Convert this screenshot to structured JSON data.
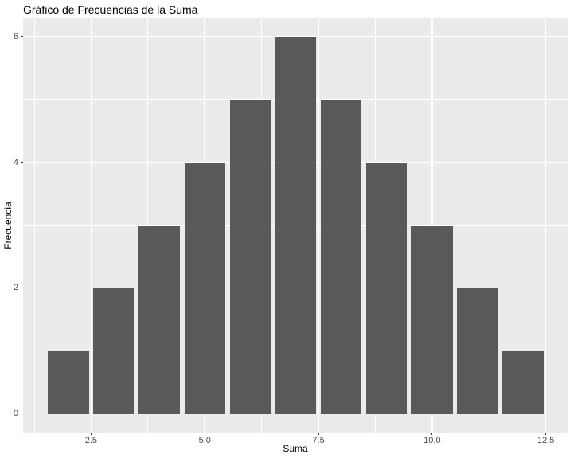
{
  "chart_data": {
    "type": "bar",
    "title": "Gráfico de Frecuencias de la Suma",
    "xlabel": "Suma",
    "ylabel": "Frecuencia",
    "categories": [
      2,
      3,
      4,
      5,
      6,
      7,
      8,
      9,
      10,
      11,
      12
    ],
    "values": [
      1,
      2,
      3,
      4,
      5,
      6,
      5,
      4,
      3,
      2,
      1
    ],
    "bar_width": 0.9,
    "xlim": [
      1.005,
      12.995
    ],
    "ylim": [
      -0.3,
      6.3
    ],
    "x_major_ticks": [
      2.5,
      5.0,
      7.5,
      10.0,
      12.5
    ],
    "x_tick_labels": [
      "2.5",
      "5.0",
      "7.5",
      "10.0",
      "12.5"
    ],
    "x_minor_ticks": [
      1.25,
      3.75,
      6.25,
      8.75,
      11.25
    ],
    "y_major_ticks": [
      0,
      2,
      4,
      6
    ],
    "y_tick_labels": [
      "0",
      "2",
      "4",
      "6"
    ],
    "y_minor_ticks": [
      1,
      3,
      5
    ],
    "legend": "none",
    "grid": "on",
    "colors": {
      "bar_fill": "#595959",
      "panel_background": "#EBEBEB",
      "gridline": "#FFFFFF",
      "figure_background": "#FFFFFF",
      "tick_text": "#4D4D4D",
      "tick_mark": "#333333",
      "title_text": "#000000"
    }
  }
}
